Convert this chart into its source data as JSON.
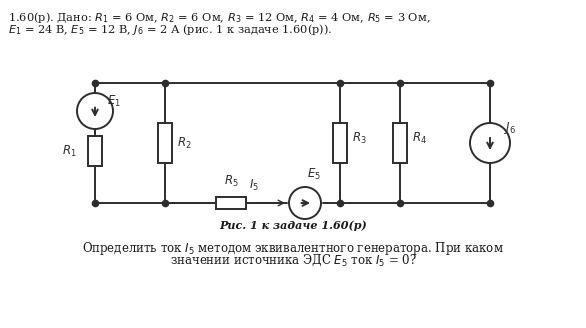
{
  "title_text": "1.60(р). Дано: $R_1$ = 6 Ом, $R_2$ = 6 Ом, $R_3$ = 12 Ом, $R_4$ = 4 Ом, $R_5$ = 3 Ом,",
  "title_text2": "$E_1$ = 24 В, $E_5$ = 12 В, $J_6$ = 2 А (рис. 1 к задаче 1.60(р)).",
  "caption": "Рис. 1 к задаче 1.60(р)",
  "bottom_text1": "Определить ток $I_5$ методом эквивалентного генератора. При каком",
  "bottom_text2": "значении источника ЭДС $E_5$ ток $I_5$ = 0?",
  "bg_color": "#ffffff",
  "line_color": "#2d2d2d",
  "text_color": "#1a1a1a"
}
